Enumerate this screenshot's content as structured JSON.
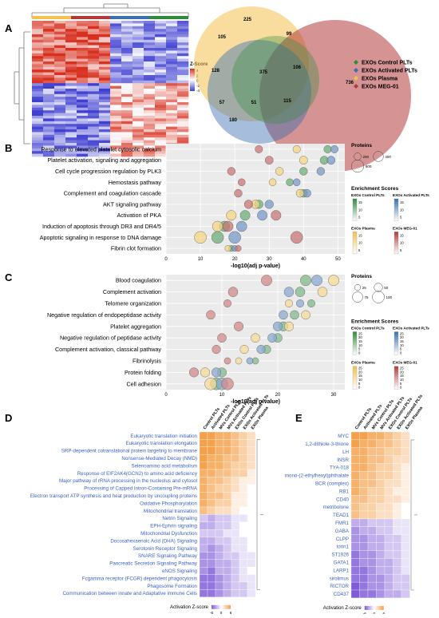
{
  "panels": {
    "A": "A",
    "B": "B",
    "C": "C",
    "D": "D",
    "E": "E"
  },
  "colors": {
    "control": "#2e8b3d",
    "activated": "#3a6fb0",
    "plasma": "#f2c14e",
    "meg": "#b23a3a",
    "heat_red": "#d7301f",
    "heat_blue": "#3f3fd1",
    "act_orange": "#f5a04a",
    "act_purple": "#7f5bd8"
  },
  "panelA": {
    "zscore_title": "Z-Score",
    "zscore_ticks": [
      "4",
      "2",
      "0",
      "-2",
      "-4"
    ],
    "venn_numbers": [
      "225",
      "105",
      "99",
      "128",
      "375",
      "106",
      "736",
      "57",
      "51",
      "115",
      "180"
    ],
    "legend": [
      {
        "label": "EXOs Control PLTs",
        "color": "#2e8b3d"
      },
      {
        "label": "EXOs Activated PLTs",
        "color": "#3a6fb0"
      },
      {
        "label": "EXOs Plasma",
        "color": "#f2c14e"
      },
      {
        "label": "EXOs MEG-01",
        "color": "#b23a3a"
      }
    ]
  },
  "chart_data": [
    {
      "type": "scatter",
      "panel": "B",
      "xlabel": "-log10(adj p-value)",
      "xlim": [
        0,
        52
      ],
      "xticks": [
        "0",
        "10",
        "20",
        "30",
        "40",
        "50"
      ],
      "categories": [
        "Response to elevated platelet cytosolic calcium",
        "Platelet activation, signaling and aggregation",
        "Cell cycle progression regulation by PLK3",
        "Hemostasis pathway",
        "Complement and coagulation cascade",
        "AKT signaling pathway",
        "Activation of PKA",
        "Induction of apoptosis through DR3 and DR4/5",
        "Apoptotic signaling in response to DNA damage",
        "Fibrin clot formation"
      ],
      "series": [
        {
          "name": "EXOs Control PLTs",
          "x": [
            47,
            46,
            40,
            36,
            40,
            27,
            23,
            17,
            15,
            19
          ]
        },
        {
          "name": "EXOs Activated PLTs",
          "x": [
            49,
            48,
            45,
            38,
            41,
            30,
            28,
            22,
            20,
            20
          ]
        },
        {
          "name": "EXOs Plasma",
          "x": [
            38,
            40,
            33,
            31,
            39,
            26,
            19,
            15,
            10,
            18
          ]
        },
        {
          "name": "EXOs MEG-01",
          "x": [
            27,
            30,
            19,
            22,
            21,
            24,
            32,
            18,
            38,
            21
          ]
        }
      ],
      "sizes": [
        220,
        260,
        240,
        200,
        240,
        280,
        380,
        420,
        560,
        140
      ],
      "size_legend_title": "Proteins",
      "size_legend": [
        "200",
        "400",
        "600"
      ],
      "enrichment_title": "Enrichment Scores",
      "enrichment_scales": [
        {
          "name": "EXOs Control PLTs",
          "ticks": [
            "15",
            "10",
            "5"
          ],
          "color": "#2e8b3d"
        },
        {
          "name": "EXOs Activated PLTs",
          "ticks": [
            "15",
            "10",
            "5"
          ],
          "color": "#3a6fb0"
        },
        {
          "name": "EXOs Plasma",
          "ticks": [
            "15",
            "10",
            "5"
          ],
          "color": "#f2c14e"
        },
        {
          "name": "EXOs MEG-01",
          "ticks": [
            "15",
            "10",
            "5"
          ],
          "color": "#b23a3a"
        }
      ]
    },
    {
      "type": "scatter",
      "panel": "C",
      "xlabel": "-log10(adj p-value)",
      "xlim": [
        0,
        32
      ],
      "xticks": [
        "0",
        "10",
        "20",
        "30"
      ],
      "categories": [
        "Blood coagulation",
        "Complement activation",
        "Telomere organization",
        "Negative regulation of endopeptidase activity",
        "Platelet aggregation",
        "Negative regulation of peptidase activity",
        "Complement activation, classical pathway",
        "Fibrinolysis",
        "Protein folding",
        "Cell adhesion"
      ],
      "series": [
        {
          "name": "EXOs Control PLTs",
          "x": [
            25,
            24,
            26,
            23,
            21,
            20,
            18,
            16,
            10,
            9
          ]
        },
        {
          "name": "EXOs Activated PLTs",
          "x": [
            27,
            22,
            24,
            21,
            20,
            19,
            17,
            15,
            9,
            10
          ]
        },
        {
          "name": "EXOs Plasma",
          "x": [
            30,
            28,
            22,
            25,
            22,
            16,
            14,
            13,
            7,
            8
          ]
        },
        {
          "name": "EXOs MEG-01",
          "x": [
            18,
            12,
            11,
            8,
            13,
            10,
            9,
            11,
            5,
            11
          ]
        }
      ],
      "sizes": [
        80,
        65,
        40,
        55,
        60,
        55,
        50,
        30,
        60,
        100
      ],
      "size_legend_title": "Proteins",
      "size_legend": [
        "25",
        "50",
        "75",
        "100"
      ],
      "enrichment_title": "Enrichment Scores",
      "enrichment_scales": [
        {
          "name": "EXOs Control PLTs",
          "ticks": [
            "25",
            "20",
            "15",
            "10",
            "5",
            "0"
          ],
          "color": "#2e8b3d"
        },
        {
          "name": "EXOs Activated PLTs",
          "ticks": [
            "25",
            "20",
            "15",
            "10",
            "5",
            "0"
          ],
          "color": "#3a6fb0"
        },
        {
          "name": "EXOs Plasma",
          "ticks": [
            "25",
            "20",
            "15",
            "10",
            "5",
            "0"
          ],
          "color": "#f2c14e"
        },
        {
          "name": "EXOs MEG-01",
          "ticks": [
            "25",
            "20",
            "15",
            "10",
            "5",
            "0"
          ],
          "color": "#b23a3a"
        }
      ]
    },
    {
      "type": "heatmap",
      "panel": "D",
      "columns": [
        "Control PLTs",
        "Activated PLTs",
        "MVs Control PLTs",
        "MVs Activated PLTs",
        "EXOs Control PLTs",
        "EXOs Activated PLTs",
        "EXOs Plasma"
      ],
      "rows": [
        "Eukaryotic translation initiation",
        "Eukaryotic translation elongation",
        "SRP-dependent cotranslational protein targeting to membrane",
        "Nonsense-Mediated Decay (NMD)",
        "Selenoamino acid metabolism",
        "Response of EIF2AK4(GCN2) to amino acid deficiency",
        "Major pathway of rRNA processing in the nucleolus and cytosol",
        "Processing of Capped Intron-Containing Pre-mRNA",
        "Electron transport ATP synthesis and heat production by uncoupling proteins",
        "Oxidative Phosphorylation",
        "Mitochondrial translation",
        "Netrin Signaling",
        "EPH-Ephrin signaling",
        "Mitochondrial Dysfunction",
        "Docosahexaenoic Acid (DHA) Signaling",
        "Serotonin Receptor Signaling",
        "SNARE Signaling Pathway",
        "Pancreatic Secretion Signaling Pathway",
        "eNOS Signaling",
        "Fcgamma receptor (FCGR) dependent phagocytosis",
        "Phagosome Formation",
        "Communication between innate and Adaptative immune Cells"
      ],
      "values": [
        [
          6,
          6,
          5,
          5,
          4,
          3,
          2
        ],
        [
          6,
          6,
          5,
          5,
          4,
          3,
          2
        ],
        [
          6,
          6,
          5,
          5,
          4,
          3,
          2
        ],
        [
          6,
          5,
          5,
          4,
          4,
          3,
          2
        ],
        [
          6,
          5,
          5,
          4,
          3,
          3,
          2
        ],
        [
          5,
          5,
          4,
          4,
          3,
          3,
          1
        ],
        [
          5,
          4,
          4,
          3,
          2,
          1,
          1
        ],
        [
          5,
          4,
          3,
          3,
          2,
          1,
          0
        ],
        [
          5,
          4,
          4,
          3,
          1,
          1,
          0
        ],
        [
          5,
          4,
          3,
          3,
          1,
          1,
          0
        ],
        [
          4,
          3,
          2,
          2,
          1,
          0,
          0
        ],
        [
          -2,
          -3,
          -2,
          -2,
          -1,
          -1,
          0
        ],
        [
          -3,
          -3,
          -2,
          -2,
          -1,
          0,
          0
        ],
        [
          -2,
          -2,
          -2,
          -1,
          -1,
          0,
          0
        ],
        [
          -3,
          -3,
          -2,
          -2,
          -1,
          -1,
          0
        ],
        [
          -3,
          -4,
          -3,
          -2,
          -1,
          -1,
          0
        ],
        [
          -4,
          -4,
          -3,
          -2,
          -2,
          -1,
          -1
        ],
        [
          -4,
          -4,
          -3,
          -3,
          -2,
          -1,
          -1
        ],
        [
          -4,
          -5,
          -3,
          -3,
          -2,
          -1,
          0
        ],
        [
          -5,
          -5,
          -4,
          -3,
          -2,
          -1,
          -1
        ],
        [
          -5,
          -5,
          -4,
          -3,
          -2,
          -2,
          -1
        ],
        [
          -5,
          -5,
          -4,
          -3,
          -2,
          -2,
          -1
        ]
      ],
      "legend_title": "Activation Z-score",
      "legend_ticks": [
        "-6",
        "0",
        "6"
      ]
    },
    {
      "type": "heatmap",
      "panel": "E",
      "columns": [
        "Control PLTs",
        "Activated PLTs",
        "MVs Control PLTs",
        "MVs Activated PLTs",
        "EXOs Control PLTs",
        "EXOs Activated PLTs",
        "EXOs Plasma"
      ],
      "rows": [
        "MYC",
        "1,2-dithiole-3-thione",
        "LH",
        "INSR",
        "TYA-018",
        "mono-(2-ethylhexyl)phthalate",
        "BCR (complex)",
        "RB1",
        "CD40",
        "metribolone",
        "TEAD1",
        "FMR1",
        "GABA",
        "CLPP",
        "torin1",
        "ST1926",
        "GATA1",
        "LARP1",
        "sirolimus",
        "RICTOR",
        "CD437"
      ],
      "values": [
        [
          6,
          6,
          5,
          5,
          4,
          3,
          2
        ],
        [
          6,
          5,
          5,
          4,
          4,
          3,
          2
        ],
        [
          5,
          5,
          4,
          4,
          3,
          3,
          2
        ],
        [
          5,
          5,
          4,
          4,
          3,
          2,
          2
        ],
        [
          5,
          5,
          4,
          3,
          3,
          2,
          1
        ],
        [
          5,
          4,
          4,
          3,
          3,
          2,
          1
        ],
        [
          5,
          4,
          4,
          3,
          2,
          2,
          1
        ],
        [
          5,
          4,
          3,
          3,
          2,
          1,
          1
        ],
        [
          4,
          4,
          3,
          3,
          2,
          2,
          1
        ],
        [
          4,
          3,
          3,
          2,
          2,
          1,
          0
        ],
        [
          4,
          3,
          3,
          2,
          2,
          1,
          0
        ],
        [
          -3,
          -3,
          -2,
          -2,
          -2,
          -1,
          -1
        ],
        [
          -4,
          -3,
          -3,
          -2,
          -2,
          -1,
          -1
        ],
        [
          -4,
          -4,
          -3,
          -3,
          -2,
          -2,
          -1
        ],
        [
          -4,
          -4,
          -3,
          -3,
          -2,
          -2,
          -1
        ],
        [
          -5,
          -4,
          -4,
          -3,
          -2,
          -2,
          -1
        ],
        [
          -5,
          -4,
          -4,
          -3,
          -3,
          -2,
          -1
        ],
        [
          -5,
          -5,
          -4,
          -3,
          -3,
          -2,
          -1
        ],
        [
          -5,
          -5,
          -4,
          -4,
          -3,
          -2,
          -2
        ],
        [
          -6,
          -5,
          -4,
          -4,
          -3,
          -2,
          -2
        ],
        [
          -6,
          -5,
          -5,
          -4,
          -3,
          -3,
          -2
        ]
      ],
      "legend_title": "Activation Z-score",
      "legend_ticks": [
        "-6",
        "0",
        "6"
      ]
    }
  ]
}
